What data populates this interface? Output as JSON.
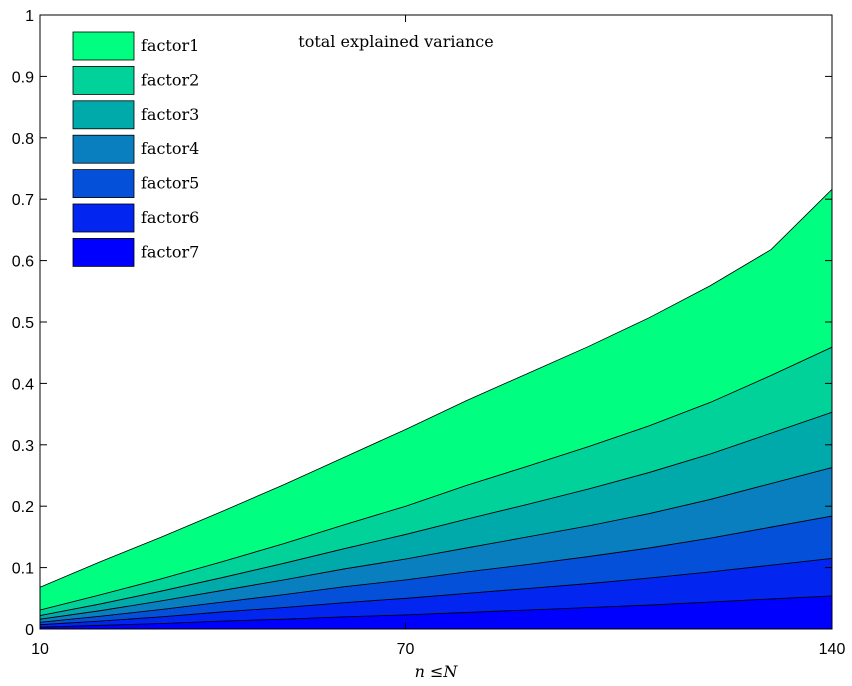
{
  "chart_data": {
    "type": "area",
    "stacked": true,
    "title": "total explained variance",
    "xlabel": "n ≤N",
    "ylabel": "",
    "x": [
      10,
      20,
      30,
      40,
      50,
      60,
      70,
      80,
      90,
      100,
      110,
      120,
      130,
      140
    ],
    "xlim": [
      10,
      140
    ],
    "ylim": [
      0,
      1
    ],
    "xticks": [
      "10",
      "70",
      "140"
    ],
    "yticks": [
      "0",
      "0.1",
      "0.2",
      "0.3",
      "0.4",
      "0.5",
      "0.6",
      "0.7",
      "0.8",
      "0.9",
      "1"
    ],
    "series": [
      {
        "name": "factor7",
        "color": "#0000ff",
        "values": [
          0.003,
          0.006,
          0.009,
          0.013,
          0.016,
          0.02,
          0.023,
          0.027,
          0.031,
          0.035,
          0.039,
          0.044,
          0.049,
          0.054
        ]
      },
      {
        "name": "factor6",
        "color": "#0226f0",
        "values": [
          0.004,
          0.007,
          0.011,
          0.015,
          0.019,
          0.023,
          0.027,
          0.031,
          0.035,
          0.039,
          0.044,
          0.049,
          0.055,
          0.061
        ]
      },
      {
        "name": "factor5",
        "color": "#0450d8",
        "values": [
          0.004,
          0.008,
          0.012,
          0.016,
          0.021,
          0.026,
          0.03,
          0.035,
          0.039,
          0.044,
          0.049,
          0.055,
          0.062,
          0.069
        ]
      },
      {
        "name": "factor4",
        "color": "#0a7fc0",
        "values": [
          0.005,
          0.009,
          0.014,
          0.019,
          0.024,
          0.029,
          0.034,
          0.039,
          0.045,
          0.05,
          0.056,
          0.063,
          0.071,
          0.079
        ]
      },
      {
        "name": "factor3",
        "color": "#00aaaa",
        "values": [
          0.006,
          0.011,
          0.016,
          0.021,
          0.027,
          0.033,
          0.04,
          0.047,
          0.053,
          0.06,
          0.067,
          0.074,
          0.082,
          0.09
        ]
      },
      {
        "name": "factor2",
        "color": "#00d29a",
        "values": [
          0.009,
          0.015,
          0.02,
          0.026,
          0.032,
          0.039,
          0.046,
          0.055,
          0.062,
          0.069,
          0.076,
          0.084,
          0.094,
          0.106
        ]
      },
      {
        "name": "factor1",
        "color": "#00ff80",
        "values": [
          0.037,
          0.054,
          0.068,
          0.082,
          0.096,
          0.11,
          0.125,
          0.138,
          0.151,
          0.163,
          0.176,
          0.19,
          0.205,
          0.257
        ]
      }
    ],
    "legend": {
      "placement": "top-left",
      "order": [
        "factor1",
        "factor2",
        "factor3",
        "factor4",
        "factor5",
        "factor6",
        "factor7"
      ]
    },
    "grid": false
  }
}
